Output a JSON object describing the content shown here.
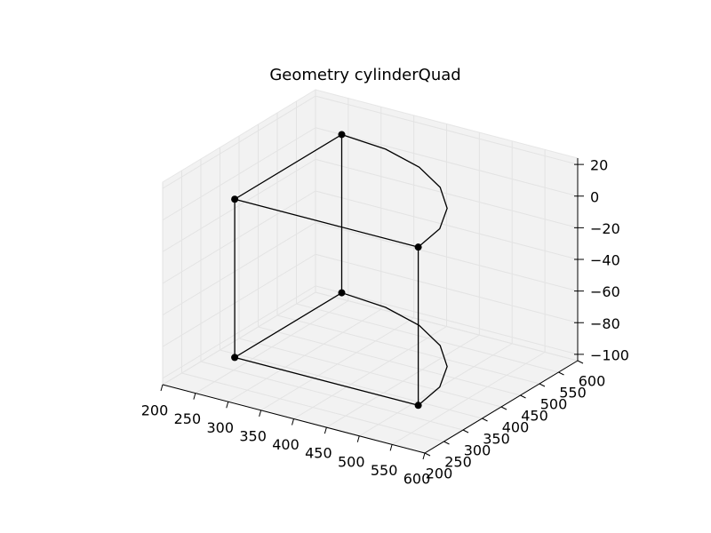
{
  "chart_data": {
    "type": "line3d",
    "title": "Geometry cylinderQuad",
    "xlim": [
      200,
      600
    ],
    "ylim": [
      200,
      600
    ],
    "zlim": [
      -104,
      24
    ],
    "xticks": [
      200,
      250,
      300,
      350,
      400,
      450,
      500,
      550,
      600
    ],
    "yticks": [
      200,
      250,
      300,
      350,
      400,
      450,
      500,
      550,
      600
    ],
    "zticks": [
      20,
      0,
      {
        "value": -20,
        "label": "−20"
      },
      {
        "value": -40,
        "label": "−40"
      },
      {
        "value": -60,
        "label": "−60"
      },
      {
        "value": -80,
        "label": "−80"
      },
      {
        "value": -100,
        "label": "−100"
      }
    ],
    "grid": true,
    "series": [
      {
        "color": "#000000",
        "x": [
          520,
          240,
          240
        ],
        "y": [
          320,
          320,
          600
        ],
        "z": [
          -100,
          -100,
          -100
        ]
      },
      {
        "color": "#000000",
        "x": [
          520,
          240,
          240
        ],
        "y": [
          320,
          320,
          600
        ],
        "z": [
          0,
          0,
          0
        ]
      },
      {
        "color": "#000000",
        "x": [
          240,
          240
        ],
        "y": [
          320,
          320
        ],
        "z": [
          -100,
          0
        ]
      },
      {
        "color": "#000000",
        "x": [
          520,
          520
        ],
        "y": [
          320,
          320
        ],
        "z": [
          -100,
          0
        ]
      },
      {
        "color": "#000000",
        "x": [
          240,
          240
        ],
        "y": [
          600,
          600
        ],
        "z": [
          -100,
          0
        ]
      },
      {
        "color": "#000000",
        "x": [
          520,
          510.5,
          482.5,
          438,
          380,
          312.5,
          240
        ],
        "y": [
          320,
          392.5,
          460,
          518,
          562.5,
          590.5,
          600
        ],
        "z": [
          -100,
          -100,
          -100,
          -100,
          -100,
          -100,
          -100
        ]
      },
      {
        "color": "#000000",
        "x": [
          520,
          510.5,
          482.5,
          438,
          380,
          312.5,
          240
        ],
        "y": [
          320,
          392.5,
          460,
          518,
          562.5,
          590.5,
          600
        ],
        "z": [
          0,
          0,
          0,
          0,
          0,
          0,
          0
        ]
      },
      {
        "color": "#000000",
        "marker": "o",
        "x": [
          240,
          520,
          240,
          240,
          520,
          240
        ],
        "y": [
          320,
          320,
          600,
          320,
          320,
          600
        ],
        "z": [
          -100,
          -100,
          -100,
          0,
          0,
          0
        ]
      }
    ]
  }
}
